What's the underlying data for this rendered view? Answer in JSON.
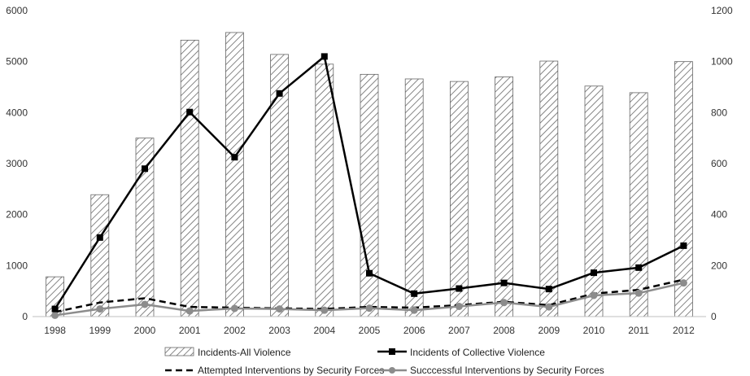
{
  "chart_data": {
    "type": "bar",
    "categories": [
      "1998",
      "1999",
      "2000",
      "2001",
      "2002",
      "2003",
      "2004",
      "2005",
      "2006",
      "2007",
      "2008",
      "2009",
      "2010",
      "2011",
      "2012"
    ],
    "y_left": {
      "range": [
        0,
        6000
      ],
      "ticks": [
        "0",
        "1000",
        "2000",
        "3000",
        "4000",
        "5000",
        "6000"
      ]
    },
    "y_right": {
      "range": [
        0,
        1200
      ],
      "ticks": [
        "0",
        "200",
        "400",
        "600",
        "800",
        "1000",
        "1200"
      ]
    },
    "grid": false,
    "legend_position": "bottom",
    "series": [
      {
        "name": "Incidents-All Violence",
        "type": "bar",
        "axis": "left",
        "values": [
          780,
          2390,
          3500,
          5420,
          5570,
          5140,
          4950,
          4750,
          4660,
          4610,
          4700,
          5010,
          4520,
          4390,
          5000
        ]
      },
      {
        "name": "Incidents of Collective Violence",
        "type": "line",
        "axis": "right",
        "style": "solid-square",
        "values": [
          30,
          310,
          580,
          802,
          625,
          875,
          1020,
          170,
          90,
          110,
          132,
          108,
          172,
          192,
          278
        ]
      },
      {
        "name": "Attempted  Interventions by Security Forces",
        "type": "line",
        "axis": "right",
        "style": "dashed",
        "values": [
          18,
          55,
          72,
          38,
          35,
          32,
          30,
          38,
          35,
          45,
          58,
          45,
          90,
          105,
          145
        ]
      },
      {
        "name": "Succcessful Interventions by Security Forces",
        "type": "line",
        "axis": "right",
        "style": "gray-circle",
        "values": [
          5,
          30,
          48,
          22,
          32,
          30,
          25,
          33,
          25,
          40,
          55,
          38,
          83,
          92,
          132
        ]
      }
    ]
  },
  "colors": {
    "collective": "#000000",
    "attempted": "#000000",
    "successful": "#8c8c8c",
    "bar_hatch": "#666666",
    "axis": "#bfbfbf"
  }
}
